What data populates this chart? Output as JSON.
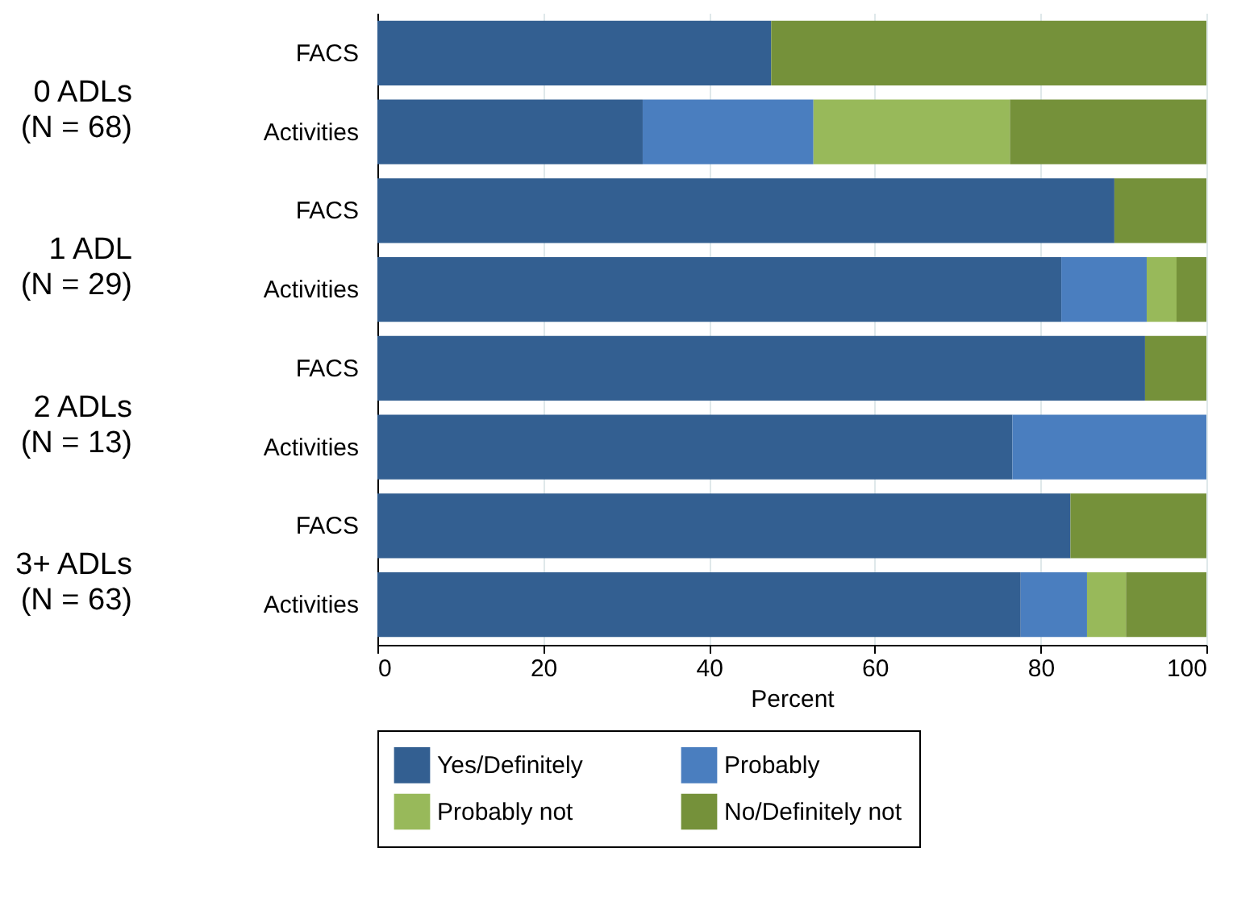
{
  "chart_data": {
    "type": "bar",
    "orientation": "horizontal",
    "stacked": true,
    "categories": [
      "FACS",
      "Activities",
      "FACS",
      "Activities",
      "FACS",
      "Activities",
      "FACS",
      "Activities"
    ],
    "series": [
      {
        "name": "Yes/Definitely",
        "color": "#335f91",
        "values": [
          47.5,
          32.0,
          88.9,
          82.5,
          92.6,
          76.6,
          83.6,
          77.6
        ]
      },
      {
        "name": "Probably",
        "color": "#4a7ebf",
        "values": [
          0,
          20.6,
          0,
          10.3,
          0,
          23.4,
          0,
          8.0
        ]
      },
      {
        "name": "Probably not",
        "color": "#98b95a",
        "values": [
          0,
          23.7,
          0,
          3.6,
          0,
          0,
          0,
          4.7
        ]
      },
      {
        "name": "No/Definitely not",
        "color": "#75913a",
        "values": [
          52.5,
          23.7,
          11.1,
          3.6,
          7.4,
          0,
          16.4,
          9.7
        ]
      }
    ],
    "xlabel": "Percent",
    "xlim": [
      0,
      100
    ],
    "xticks": [
      0,
      20,
      40,
      60,
      80,
      100
    ],
    "grid": "x",
    "legend": "bottom",
    "annotations": [
      "0 ADLs\n(N = 68)",
      "1 ADL\n(N = 29)",
      "2 ADLs\n(N = 13)",
      "3+ ADLs\n(N = 63)"
    ]
  }
}
